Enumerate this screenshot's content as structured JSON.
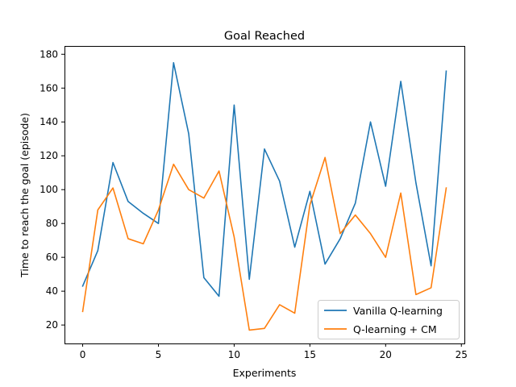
{
  "chart_data": {
    "type": "line",
    "title": "Goal Reached",
    "xlabel": "Experiments",
    "ylabel": "Time to reach the goal (episode)",
    "xlim": [
      -1.2,
      25.2
    ],
    "ylim": [
      9.1,
      184.9
    ],
    "xticks": [
      0,
      5,
      10,
      15,
      20,
      25
    ],
    "yticks": [
      20,
      40,
      60,
      80,
      100,
      120,
      140,
      160,
      180
    ],
    "grid": false,
    "legend_position": "lower-right",
    "x": [
      0,
      1,
      2,
      3,
      4,
      5,
      6,
      7,
      8,
      9,
      10,
      11,
      12,
      13,
      14,
      15,
      16,
      17,
      18,
      19,
      20,
      21,
      22,
      23,
      24
    ],
    "series": [
      {
        "name": "Vanilla Q-learning",
        "color": "#1f77b4",
        "values": [
          43,
          64,
          116,
          93,
          86,
          80,
          175,
          133,
          48,
          37,
          150,
          47,
          124,
          105,
          66,
          99,
          56,
          71,
          92,
          140,
          102,
          164,
          104,
          55,
          170
        ]
      },
      {
        "name": "Q-learning + CM",
        "color": "#ff7f0e",
        "values": [
          28,
          88,
          101,
          71,
          68,
          88,
          115,
          100,
          95,
          111,
          72,
          17,
          18,
          32,
          27,
          91,
          119,
          74,
          85,
          74,
          60,
          98,
          38,
          42,
          101
        ]
      }
    ]
  }
}
